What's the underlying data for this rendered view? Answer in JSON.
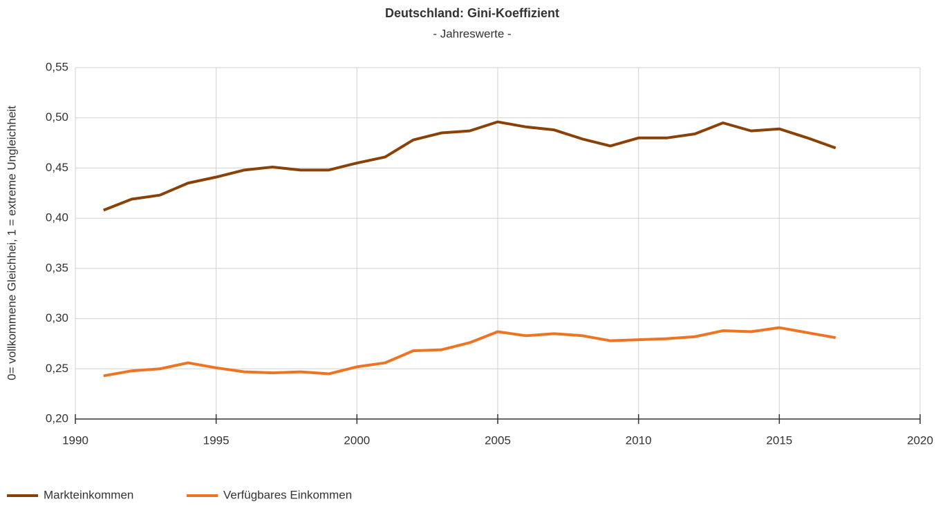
{
  "chart_data": {
    "type": "line",
    "title": "Deutschland: Gini-Koeffizient",
    "subtitle": "- Jahreswerte -",
    "y_label": "0= vollkommene Gleichhei, 1 = extreme Ungleichheit",
    "x": [
      1991,
      1992,
      1993,
      1994,
      1995,
      1996,
      1997,
      1998,
      1999,
      2000,
      2001,
      2002,
      2003,
      2004,
      2005,
      2006,
      2007,
      2008,
      2009,
      2010,
      2011,
      2012,
      2013,
      2014,
      2015,
      2016,
      2017
    ],
    "series": [
      {
        "name": "Markteinkommen",
        "color": "#8a4108",
        "values": [
          0.408,
          0.419,
          0.423,
          0.435,
          0.441,
          0.448,
          0.451,
          0.448,
          0.448,
          0.455,
          0.461,
          0.478,
          0.485,
          0.487,
          0.496,
          0.491,
          0.488,
          0.479,
          0.472,
          0.48,
          0.48,
          0.484,
          0.495,
          0.487,
          0.489,
          0.48,
          0.47
        ]
      },
      {
        "name": "Verfügbares Einkommen",
        "color": "#ee7424",
        "values": [
          0.243,
          0.248,
          0.25,
          0.256,
          0.251,
          0.247,
          0.246,
          0.247,
          0.245,
          0.252,
          0.256,
          0.268,
          0.269,
          0.276,
          0.287,
          0.283,
          0.285,
          0.283,
          0.278,
          0.279,
          0.28,
          0.282,
          0.288,
          0.287,
          0.291,
          0.286,
          0.281
        ]
      }
    ],
    "xlim": [
      1990,
      2020
    ],
    "xticks": [
      1990,
      1995,
      2000,
      2005,
      2010,
      2015,
      2020
    ],
    "ylim": [
      0.2,
      0.55
    ],
    "yticks": [
      {
        "value": 0.2,
        "label": "0,20"
      },
      {
        "value": 0.25,
        "label": "0,25"
      },
      {
        "value": 0.3,
        "label": "0,30"
      },
      {
        "value": 0.35,
        "label": "0,35"
      },
      {
        "value": 0.4,
        "label": "0,40"
      },
      {
        "value": 0.45,
        "label": "0,45"
      },
      {
        "value": 0.5,
        "label": "0,50"
      },
      {
        "value": 0.55,
        "label": "0,55"
      }
    ],
    "grid": true,
    "legend": "bottom-left"
  }
}
